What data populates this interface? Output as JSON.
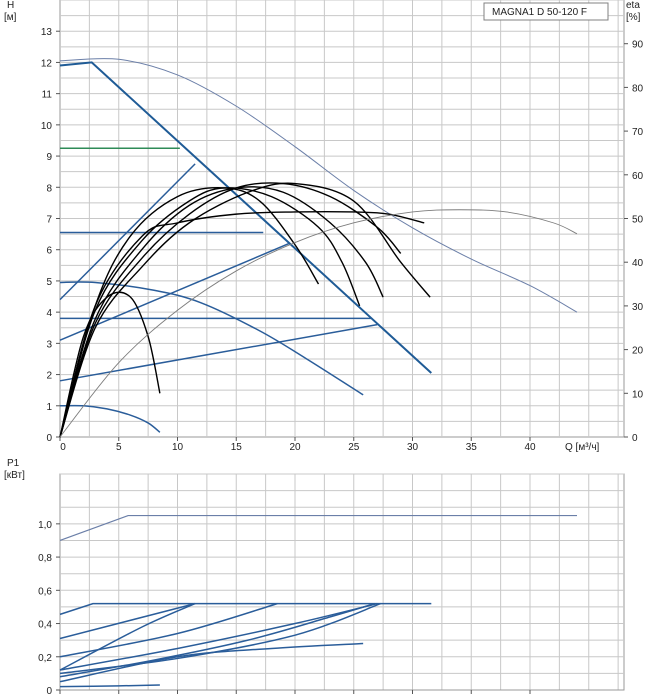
{
  "chart_data": [
    {
      "type": "line",
      "title": "MAGNA1 D 50-120 F",
      "ylabel": "H",
      "yunit": "[м]",
      "y2label": "eta",
      "y2unit": "[%]",
      "xlabel": "Q [м³/ч]",
      "xlim": [
        0,
        48
      ],
      "ylim": [
        0,
        14
      ],
      "y2lim": [
        0,
        100
      ],
      "xticks": [
        0,
        5,
        10,
        15,
        20,
        25,
        30,
        35,
        40
      ],
      "yticks": [
        0,
        1,
        2,
        3,
        4,
        5,
        6,
        7,
        8,
        9,
        10,
        11,
        12,
        13
      ],
      "y2ticks": [
        0,
        10,
        20,
        30,
        40,
        50,
        60,
        70,
        80,
        90
      ],
      "grid": true,
      "series": [
        {
          "group": "head-max-envelope",
          "color": "#1f5b96",
          "points": [
            [
              0,
              11.9
            ],
            [
              2.7,
              12.0
            ],
            [
              31.6,
              2.05
            ]
          ]
        },
        {
          "group": "head-step",
          "color": "#2e8b57",
          "points": [
            [
              0,
              9.25
            ],
            [
              10.2,
              9.25
            ]
          ]
        },
        {
          "group": "head-step",
          "color": "#2a5d9a",
          "points": [
            [
              0,
              6.55
            ],
            [
              17.3,
              6.55
            ]
          ]
        },
        {
          "group": "head-step",
          "color": "#2a5d9a",
          "points": [
            [
              0,
              3.8
            ],
            [
              26.5,
              3.8
            ]
          ]
        },
        {
          "group": "head-step",
          "color": "#2a5d9a",
          "points": [
            [
              0,
              1.8
            ],
            [
              27.0,
              3.6
            ]
          ]
        },
        {
          "group": "head-step",
          "color": "#2a5d9a",
          "points": [
            [
              0,
              3.1
            ],
            [
              19.5,
              6.2
            ]
          ]
        },
        {
          "group": "head-step",
          "color": "#2a5d9a",
          "points": [
            [
              0,
              4.4
            ],
            [
              11.5,
              8.75
            ]
          ]
        },
        {
          "group": "head-min-curve",
          "color": "#2a5d9a",
          "points": [
            [
              0,
              4.95
            ],
            [
              3,
              4.95
            ],
            [
              8,
              4.7
            ],
            [
              12,
              4.3
            ],
            [
              17,
              3.4
            ],
            [
              21,
              2.5
            ],
            [
              25.8,
              1.35
            ]
          ]
        },
        {
          "group": "head-min-curve",
          "color": "#2a5d9a",
          "points": [
            [
              0,
              1.0
            ],
            [
              2,
              1.0
            ],
            [
              4,
              0.9
            ],
            [
              6,
              0.7
            ],
            [
              7.5,
              0.45
            ],
            [
              8.5,
              0.15
            ]
          ]
        },
        {
          "group": "head-max-curve",
          "color": "#6b7fa8",
          "points": [
            [
              0,
              12.05
            ],
            [
              5,
              12.1
            ],
            [
              10,
              11.6
            ],
            [
              15,
              10.6
            ],
            [
              20,
              9.3
            ],
            [
              25,
              7.9
            ],
            [
              30,
              6.7
            ],
            [
              35,
              5.7
            ],
            [
              40,
              4.85
            ],
            [
              44,
              4.0
            ]
          ]
        },
        {
          "group": "efficiency",
          "color": "#000000",
          "points": [
            [
              0,
              0
            ],
            [
              3,
              25
            ],
            [
              7,
              39
            ],
            [
              11,
              49
            ],
            [
              16,
              56
            ],
            [
              20,
              58
            ],
            [
              25,
              54
            ],
            [
              29,
              40
            ],
            [
              31.5,
              32
            ]
          ]
        },
        {
          "group": "efficiency",
          "color": "#000000",
          "points": [
            [
              0,
              0
            ],
            [
              3,
              26
            ],
            [
              7,
              41
            ],
            [
              11,
              51
            ],
            [
              15,
              57
            ],
            [
              19,
              58
            ],
            [
              23,
              55
            ],
            [
              27,
              48
            ],
            [
              29,
              42
            ]
          ]
        },
        {
          "group": "efficiency",
          "color": "#000000",
          "points": [
            [
              0,
              0
            ],
            [
              3,
              27
            ],
            [
              7,
              43
            ],
            [
              11,
              53
            ],
            [
              15,
              57
            ],
            [
              19,
              56
            ],
            [
              23,
              49
            ],
            [
              26,
              40
            ],
            [
              27.5,
              32
            ]
          ]
        },
        {
          "group": "efficiency",
          "color": "#000000",
          "points": [
            [
              0,
              0
            ],
            [
              3,
              29
            ],
            [
              7,
              45
            ],
            [
              11,
              54
            ],
            [
              14,
              57
            ],
            [
              18,
              55
            ],
            [
              22,
              48
            ],
            [
              24,
              40
            ],
            [
              25.5,
              30
            ]
          ]
        },
        {
          "group": "efficiency",
          "color": "#000000",
          "points": [
            [
              0,
              0
            ],
            [
              3,
              30
            ],
            [
              6,
              46
            ],
            [
              10,
              55
            ],
            [
              14,
              57
            ],
            [
              17,
              54
            ],
            [
              20,
              44
            ],
            [
              22,
              35
            ]
          ]
        },
        {
          "group": "efficiency",
          "color": "#000000",
          "points": [
            [
              0,
              0
            ],
            [
              2,
              23
            ],
            [
              4,
              32
            ],
            [
              6,
              32
            ],
            [
              7.5,
              23
            ],
            [
              8.5,
              10
            ]
          ]
        },
        {
          "group": "efficiency",
          "color": "#000000",
          "points": [
            [
              0,
              0
            ],
            [
              3,
              30
            ],
            [
              7,
              46
            ],
            [
              10,
              49
            ],
            [
              15,
              51
            ],
            [
              20,
              51.5
            ],
            [
              25,
              51.5
            ],
            [
              28,
              51
            ],
            [
              31,
              49
            ]
          ]
        },
        {
          "group": "efficiency",
          "color": "#7d7d7d",
          "points": [
            [
              0,
              0
            ],
            [
              5,
              17
            ],
            [
              10,
              29
            ],
            [
              15,
              38
            ],
            [
              20,
              44.5
            ],
            [
              25,
              49
            ],
            [
              30,
              51.5
            ],
            [
              34,
              52
            ],
            [
              38,
              51.5
            ],
            [
              42,
              49
            ],
            [
              44,
              46.5
            ]
          ]
        }
      ]
    },
    {
      "type": "line",
      "ylabel": "P1",
      "yunit": "[кВт]",
      "xlim": [
        0,
        48
      ],
      "ylim": [
        0,
        1.3
      ],
      "yticks": [
        "0",
        "0,2",
        "0,4",
        "0,6",
        "0,8",
        "1,0"
      ],
      "ytick_values": [
        0,
        0.2,
        0.4,
        0.6,
        0.8,
        1.0
      ],
      "grid": true,
      "series": [
        {
          "group": "p1-max",
          "color": "#6b7fa8",
          "points": [
            [
              0,
              0.9
            ],
            [
              5.8,
              1.05
            ],
            [
              44,
              1.05
            ]
          ]
        },
        {
          "group": "p1",
          "color": "#2a5d9a",
          "points": [
            [
              0,
              0.455
            ],
            [
              2.8,
              0.52
            ],
            [
              31.6,
              0.52
            ]
          ]
        },
        {
          "group": "p1",
          "color": "#2a5d9a",
          "points": [
            [
              0,
              0.31
            ],
            [
              11.5,
              0.52
            ]
          ]
        },
        {
          "group": "p1",
          "color": "#2a5d9a",
          "points": [
            [
              0,
              0.2
            ],
            [
              10,
              0.34
            ],
            [
              18.5,
              0.52
            ]
          ]
        },
        {
          "group": "p1",
          "color": "#2a5d9a",
          "points": [
            [
              0,
              0.12
            ],
            [
              10,
              0.25
            ],
            [
              20,
              0.4
            ],
            [
              27,
              0.52
            ]
          ]
        },
        {
          "group": "p1",
          "color": "#2a5d9a",
          "points": [
            [
              0,
              0.1
            ],
            [
              10,
              0.19
            ],
            [
              20,
              0.33
            ],
            [
              27.3,
              0.52
            ]
          ]
        },
        {
          "group": "p1",
          "color": "#2a5d9a",
          "points": [
            [
              0,
              0.12
            ],
            [
              7,
              0.38
            ],
            [
              11.5,
              0.52
            ]
          ]
        },
        {
          "group": "p1",
          "color": "#2a5d9a",
          "points": [
            [
              0,
              0.08
            ],
            [
              8,
              0.18
            ],
            [
              16,
              0.3
            ],
            [
              23,
              0.44
            ],
            [
              26.8,
              0.52
            ]
          ]
        },
        {
          "group": "p1",
          "color": "#2a5d9a",
          "points": [
            [
              0,
              0.05
            ],
            [
              10,
              0.2
            ],
            [
              18,
              0.25
            ],
            [
              25.8,
              0.28
            ]
          ]
        },
        {
          "group": "p1",
          "color": "#2a5d9a",
          "points": [
            [
              0,
              0.02
            ],
            [
              5,
              0.025
            ],
            [
              8.5,
              0.03
            ]
          ]
        }
      ]
    }
  ]
}
